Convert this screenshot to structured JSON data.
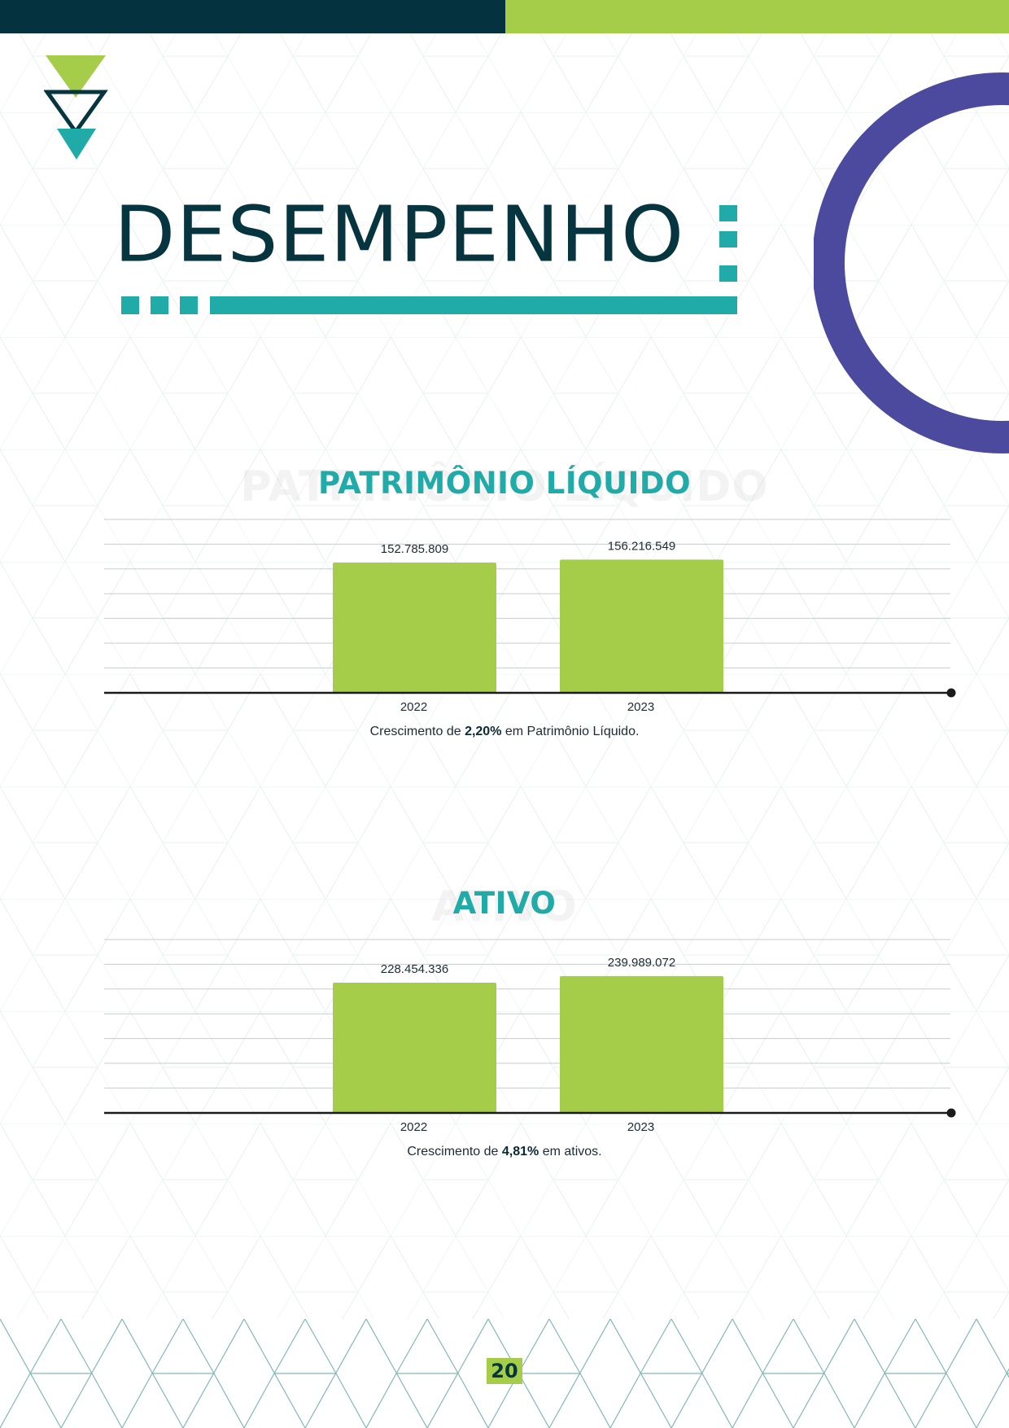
{
  "page": {
    "title": "DESEMPENHO",
    "page_number": "20",
    "colors": {
      "dark_teal": "#04323e",
      "lime_green": "#a5cd4a",
      "teal": "#20aaa8",
      "purple": "#4b4a9f"
    }
  },
  "chart_data": [
    {
      "type": "bar",
      "title": "PATRIMÔNIO LÍQUIDO",
      "categories": [
        "2022",
        "2023"
      ],
      "values": [
        152785809,
        156216549
      ],
      "value_labels": [
        "152.785.809",
        "156.216.549"
      ],
      "caption": {
        "before": "Crescimento de ",
        "highlight": "2,20%",
        "after": " em Patrimônio Líquido."
      },
      "bar_color": "#a5cd4a",
      "grid": true
    },
    {
      "type": "bar",
      "title": "ATIVO",
      "categories": [
        "2022",
        "2023"
      ],
      "values": [
        228454336,
        239989072
      ],
      "value_labels": [
        "228.454.336",
        "239.989.072"
      ],
      "caption": {
        "before": "Crescimento de ",
        "highlight": "4,81%",
        "after": " em ativos."
      },
      "bar_color": "#a5cd4a",
      "grid": true
    }
  ]
}
